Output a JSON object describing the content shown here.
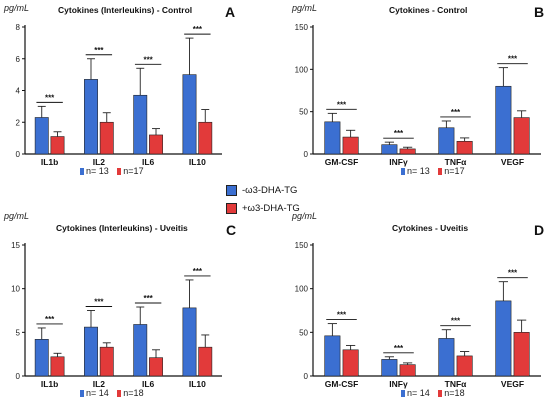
{
  "legend": {
    "items": [
      {
        "label": "-ω3-DHA-TG",
        "color": "#3b6fd1"
      },
      {
        "label": "+ω3-DHA-TG",
        "color": "#e23a3a"
      }
    ]
  },
  "chart_data": [
    {
      "id": "A",
      "letter": "A",
      "unit": "pg/mL",
      "title": "Cytokines (Interleukins) - Control",
      "type": "bar",
      "categories": [
        "IL1b",
        "IL2",
        "IL6",
        "IL10"
      ],
      "ylim": [
        0,
        8
      ],
      "yticks": [
        0,
        2,
        4,
        6,
        8
      ],
      "series": [
        {
          "color": "#3b6fd1",
          "values": [
            2.3,
            4.7,
            3.7,
            5.0
          ],
          "errors": [
            0.7,
            1.3,
            1.7,
            2.3
          ]
        },
        {
          "color": "#e23a3a",
          "values": [
            1.1,
            2.0,
            1.2,
            2.0
          ],
          "errors": [
            0.3,
            0.6,
            0.4,
            0.8
          ]
        }
      ],
      "significance": [
        "***",
        "***",
        "***",
        "***"
      ],
      "n_legend": [
        {
          "label": "n= 13",
          "color": "#3b6fd1"
        },
        {
          "label": "n=17",
          "color": "#e23a3a"
        }
      ]
    },
    {
      "id": "B",
      "letter": "B",
      "unit": "pg/mL",
      "title": "Cytokines - Control",
      "type": "bar",
      "categories": [
        "GM-CSF",
        "INFγ",
        "TNFα",
        "VEGF"
      ],
      "ylim": [
        0,
        150
      ],
      "yticks": [
        0,
        50,
        100,
        150
      ],
      "series": [
        {
          "color": "#3b6fd1",
          "values": [
            38,
            11,
            31,
            80
          ],
          "errors": [
            10,
            3,
            8,
            22
          ]
        },
        {
          "color": "#e23a3a",
          "values": [
            20,
            6,
            15,
            43
          ],
          "errors": [
            8,
            2,
            4,
            8
          ]
        }
      ],
      "significance": [
        "***",
        "***",
        "***",
        "***"
      ],
      "n_legend": [
        {
          "label": "n= 13",
          "color": "#3b6fd1"
        },
        {
          "label": "n=17",
          "color": "#e23a3a"
        }
      ]
    },
    {
      "id": "C",
      "letter": "C",
      "unit": "pg/mL",
      "title": "Cytokines (Interleukins) - Uveitis",
      "type": "bar",
      "categories": [
        "IL1b",
        "IL2",
        "IL6",
        "IL10"
      ],
      "ylim": [
        0,
        15
      ],
      "yticks": [
        0,
        5,
        10,
        15
      ],
      "series": [
        {
          "color": "#3b6fd1",
          "values": [
            4.2,
            5.6,
            5.9,
            7.8
          ],
          "errors": [
            1.3,
            1.9,
            2.0,
            3.2
          ]
        },
        {
          "color": "#e23a3a",
          "values": [
            2.2,
            3.3,
            2.1,
            3.3
          ],
          "errors": [
            0.4,
            0.5,
            0.9,
            1.4
          ]
        }
      ],
      "significance": [
        "***",
        "***",
        "***",
        "***"
      ],
      "n_legend": [
        {
          "label": "n= 14",
          "color": "#3b6fd1"
        },
        {
          "label": "n=18",
          "color": "#e23a3a"
        }
      ]
    },
    {
      "id": "D",
      "letter": "D",
      "unit": "pg/mL",
      "title": "Cytokines - Uveitis",
      "type": "bar",
      "categories": [
        "GM-CSF",
        "INFγ",
        "TNFα",
        "VEGF"
      ],
      "ylim": [
        0,
        150
      ],
      "yticks": [
        0,
        50,
        100,
        150
      ],
      "series": [
        {
          "color": "#3b6fd1",
          "values": [
            46,
            19,
            43,
            86
          ],
          "errors": [
            14,
            3,
            10,
            22
          ]
        },
        {
          "color": "#e23a3a",
          "values": [
            30,
            13,
            23,
            50
          ],
          "errors": [
            5,
            2,
            5,
            14
          ]
        }
      ],
      "significance": [
        "***",
        "***",
        "***",
        "***"
      ],
      "n_legend": [
        {
          "label": "n= 14",
          "color": "#3b6fd1"
        },
        {
          "label": "n=18",
          "color": "#e23a3a"
        }
      ]
    }
  ]
}
